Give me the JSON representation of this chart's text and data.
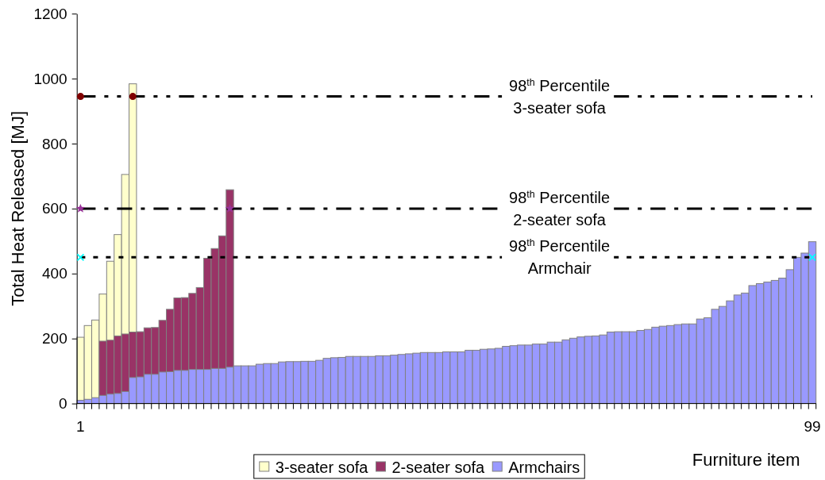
{
  "chart_data": {
    "type": "bar",
    "categories": [
      "1",
      null,
      null,
      null,
      null,
      null,
      null,
      null,
      null,
      null,
      null,
      null,
      null,
      null,
      null,
      null,
      null,
      null,
      null,
      null,
      null,
      null,
      null,
      null,
      null,
      null,
      null,
      null,
      null,
      null,
      null,
      null,
      null,
      null,
      null,
      null,
      null,
      null,
      null,
      null,
      null,
      null,
      null,
      null,
      null,
      null,
      null,
      null,
      null,
      null,
      null,
      null,
      null,
      null,
      null,
      null,
      null,
      null,
      null,
      null,
      null,
      null,
      null,
      null,
      null,
      null,
      null,
      null,
      null,
      null,
      null,
      null,
      null,
      null,
      null,
      null,
      null,
      null,
      null,
      null,
      null,
      null,
      null,
      null,
      null,
      null,
      null,
      null,
      null,
      null,
      null,
      null,
      null,
      null,
      null,
      null,
      null,
      null,
      "99"
    ],
    "series": [
      {
        "name": "3-seater sofa",
        "color": "#ffffcc",
        "values": [
          204,
          240,
          257,
          337,
          438,
          520,
          705,
          984,
          null,
          null,
          null,
          null,
          null,
          null,
          null,
          null,
          null,
          null,
          null,
          null,
          null,
          null,
          null,
          null,
          null,
          null,
          null,
          null,
          null,
          null,
          null,
          null,
          null,
          null,
          null,
          null,
          null,
          null,
          null,
          null,
          null,
          null,
          null,
          null,
          null,
          null,
          null,
          null,
          null,
          null,
          null,
          null,
          null,
          null,
          null,
          null,
          null,
          null,
          null,
          null,
          null,
          null,
          null,
          null,
          null,
          null,
          null,
          null,
          null,
          null,
          null,
          null,
          null,
          null,
          null,
          null,
          null,
          null,
          null,
          null,
          null,
          null,
          null,
          null,
          null,
          null,
          null,
          null,
          null,
          null,
          null,
          null,
          null,
          null,
          null,
          null,
          null,
          null,
          null
        ]
      },
      {
        "name": "2-seater sofa",
        "color": "#993366",
        "values": [
          null,
          null,
          null,
          192,
          195,
          208,
          214,
          220,
          221,
          233,
          234,
          256,
          290,
          325,
          326,
          339,
          357,
          447,
          477,
          516,
          658,
          null,
          null,
          null,
          null,
          null,
          null,
          null,
          null,
          null,
          null,
          null,
          null,
          null,
          null,
          null,
          null,
          null,
          null,
          null,
          null,
          null,
          null,
          null,
          null,
          null,
          null,
          null,
          null,
          null,
          null,
          null,
          null,
          null,
          null,
          null,
          null,
          null,
          null,
          null,
          null,
          null,
          null,
          null,
          null,
          null,
          null,
          null,
          null,
          null,
          null,
          null,
          null,
          null,
          null,
          null,
          null,
          null,
          null,
          null,
          null,
          null,
          null,
          null,
          null,
          null,
          null,
          null,
          null,
          null,
          null,
          null,
          null,
          null,
          null,
          null,
          null,
          null,
          null
        ]
      },
      {
        "name": "Armchairs",
        "color": "#9999ff",
        "values": [
          10,
          13,
          18,
          25,
          29,
          31,
          37,
          80,
          82,
          90,
          90,
          97,
          98,
          102,
          102,
          105,
          105,
          105,
          108,
          108,
          112,
          116,
          116,
          116,
          121,
          123,
          123,
          128,
          129,
          129,
          130,
          130,
          133,
          139,
          141,
          142,
          145,
          145,
          145,
          145,
          147,
          147,
          149,
          151,
          153,
          155,
          157,
          157,
          157,
          159,
          159,
          159,
          164,
          164,
          167,
          168,
          170,
          176,
          178,
          180,
          180,
          183,
          183,
          189,
          189,
          196,
          201,
          205,
          207,
          208,
          211,
          220,
          221,
          221,
          221,
          225,
          228,
          235,
          238,
          240,
          243,
          245,
          245,
          260,
          264,
          290,
          299,
          316,
          334,
          340,
          363,
          369,
          374,
          379,
          386,
          412,
          450,
          463,
          498
        ]
      },
      {
        "type": "scatter",
        "color": "#800000",
        "marker": "circle",
        "values": [
          945,
          null,
          null,
          null,
          null,
          null,
          null,
          945,
          null,
          null,
          null,
          null,
          null,
          null,
          null,
          null,
          null,
          null,
          null,
          null,
          null,
          null,
          null,
          null,
          null,
          null,
          null,
          null,
          null,
          null,
          null,
          null,
          null,
          null,
          null,
          null,
          null,
          null,
          null,
          null,
          null,
          null,
          null,
          null,
          null,
          null,
          null,
          null,
          null,
          null,
          null,
          null,
          null,
          null,
          null,
          null,
          null,
          null,
          null,
          null,
          null,
          null,
          null,
          null,
          null,
          null,
          null,
          null,
          null,
          null,
          null,
          null,
          null,
          null,
          null,
          null,
          null,
          null,
          null,
          null,
          null,
          null,
          null,
          null,
          null,
          null,
          null,
          null,
          null,
          null,
          null,
          null,
          null,
          null,
          null,
          null,
          null,
          null,
          null
        ]
      },
      {
        "type": "scatter",
        "color": "#993399",
        "marker": "star",
        "values": [
          600,
          null,
          null,
          null,
          null,
          null,
          null,
          null,
          null,
          null,
          null,
          null,
          null,
          null,
          null,
          null,
          null,
          null,
          null,
          null,
          600,
          null,
          null,
          null,
          null,
          null,
          null,
          null,
          null,
          null,
          null,
          null,
          null,
          null,
          null,
          null,
          null,
          null,
          null,
          null,
          null,
          null,
          null,
          null,
          null,
          null,
          null,
          null,
          null,
          null,
          null,
          null,
          null,
          null,
          null,
          null,
          null,
          null,
          null,
          null,
          null,
          null,
          null,
          null,
          null,
          null,
          null,
          null,
          null,
          null,
          null,
          null,
          null,
          null,
          null,
          null,
          null,
          null,
          null,
          null,
          null,
          null,
          null,
          null,
          null,
          null,
          null,
          null,
          null,
          null,
          null,
          null,
          null,
          null,
          null,
          null,
          null,
          null,
          null
        ]
      },
      {
        "type": "scatter",
        "color": "#00ffff",
        "marker": "cross",
        "values": [
          450,
          null,
          null,
          null,
          null,
          null,
          null,
          null,
          null,
          null,
          null,
          null,
          null,
          null,
          null,
          null,
          null,
          null,
          null,
          null,
          null,
          null,
          null,
          null,
          null,
          null,
          null,
          null,
          null,
          null,
          null,
          null,
          null,
          null,
          null,
          null,
          null,
          null,
          null,
          null,
          null,
          null,
          null,
          null,
          null,
          null,
          null,
          null,
          null,
          null,
          null,
          null,
          null,
          null,
          null,
          null,
          null,
          null,
          null,
          null,
          null,
          null,
          null,
          null,
          null,
          null,
          null,
          null,
          null,
          null,
          null,
          null,
          null,
          null,
          null,
          null,
          null,
          null,
          null,
          null,
          null,
          null,
          null,
          null,
          null,
          null,
          null,
          null,
          null,
          null,
          null,
          null,
          null,
          null,
          null,
          null,
          null,
          null,
          450
        ]
      }
    ],
    "ylim": [
      0,
      1200
    ],
    "yticks": [
      0,
      200,
      400,
      600,
      800,
      1000,
      1200
    ],
    "ylabel": "Total Heat Released [MJ]",
    "xlabel": "Furniture item",
    "legend": "bottom",
    "ref_lines": [
      {
        "axis": "y",
        "value": 945,
        "label": "98$^{th}$ Percentile\n3-seater sofa",
        "line_style": "dashdotdot",
        "color": "#000000"
      },
      {
        "axis": "y",
        "value": 600,
        "label": "98$^{th}$ Percentile\n2-seater sofa",
        "line_style": "dashdot",
        "color": "#000000"
      },
      {
        "axis": "y",
        "value": 450,
        "label": "98$^{th}$ Percentile\nArmchair",
        "line_style": "dashed",
        "color": "#000000"
      }
    ]
  }
}
